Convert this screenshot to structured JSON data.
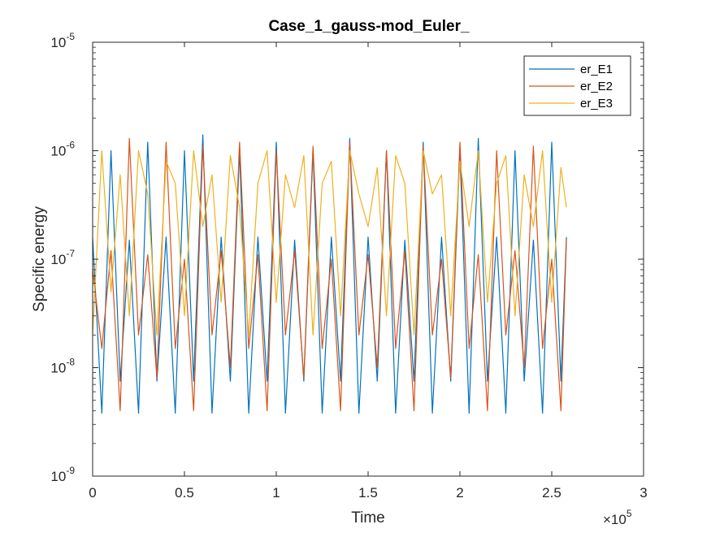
{
  "chart_data": {
    "type": "line",
    "title": "Case_1_gauss-mod_Euler_",
    "xlabel": "Time",
    "ylabel": "Specific energy",
    "x_exponent_label": "×10",
    "x_exponent_power": "5",
    "xlim": [
      0,
      300000
    ],
    "ylim": [
      1e-09,
      1e-05
    ],
    "yscale": "log",
    "x_ticks": [
      0,
      50000,
      100000,
      150000,
      200000,
      250000,
      300000
    ],
    "x_tick_labels": [
      "0",
      "0.5",
      "1",
      "1.5",
      "2",
      "2.5",
      "3"
    ],
    "y_ticks": [
      1e-09,
      1e-08,
      1e-07,
      1e-06,
      1e-05
    ],
    "y_tick_mantissa": [
      "10",
      "10",
      "10",
      "10",
      "10"
    ],
    "y_tick_powers": [
      "-9",
      "-8",
      "-7",
      "-6",
      "-5"
    ],
    "grid": false,
    "legend_position": "top-right",
    "series": [
      {
        "name": "er_E1",
        "color": "#0072BD",
        "x": [
          0,
          5000,
          10000,
          15000,
          20000,
          25000,
          30000,
          35000,
          40000,
          45000,
          50000,
          55000,
          60000,
          65000,
          70000,
          75000,
          80000,
          85000,
          90000,
          95000,
          100000,
          105000,
          110000,
          115000,
          120000,
          125000,
          130000,
          135000,
          140000,
          145000,
          150000,
          155000,
          160000,
          165000,
          170000,
          175000,
          180000,
          185000,
          190000,
          195000,
          200000,
          205000,
          210000,
          215000,
          220000,
          225000,
          230000,
          235000,
          240000,
          245000,
          250000,
          255000,
          258000
        ],
        "y": [
          1.6e-07,
          3.8e-09,
          1e-06,
          7.5e-09,
          1.5e-07,
          3.8e-09,
          1.2e-06,
          7.5e-09,
          1.6e-07,
          3.8e-09,
          1e-06,
          7.5e-09,
          1.4e-06,
          3.8e-09,
          1.6e-07,
          7.5e-09,
          1e-06,
          3.8e-09,
          1.6e-07,
          7.5e-09,
          1.2e-06,
          3.8e-09,
          1.5e-07,
          7.5e-09,
          1e-06,
          3.8e-09,
          1.6e-07,
          7.5e-09,
          1.3e-06,
          3.8e-09,
          1.6e-07,
          7.5e-09,
          1e-06,
          3.8e-09,
          1.5e-07,
          7.5e-09,
          1.2e-06,
          3.8e-09,
          1.6e-07,
          7.5e-09,
          1e-06,
          3.8e-09,
          1.3e-06,
          7.5e-09,
          1.6e-07,
          3.8e-09,
          1e-06,
          7.5e-09,
          1.5e-07,
          3.8e-09,
          1.2e-06,
          7.5e-09,
          1.6e-07
        ]
      },
      {
        "name": "er_E2",
        "color": "#D95319",
        "x": [
          0,
          5000,
          10000,
          15000,
          20000,
          25000,
          30000,
          35000,
          40000,
          45000,
          50000,
          55000,
          60000,
          65000,
          70000,
          75000,
          80000,
          85000,
          90000,
          95000,
          100000,
          105000,
          110000,
          115000,
          120000,
          125000,
          130000,
          135000,
          140000,
          145000,
          150000,
          155000,
          160000,
          165000,
          170000,
          175000,
          180000,
          185000,
          190000,
          195000,
          200000,
          205000,
          210000,
          215000,
          220000,
          225000,
          230000,
          235000,
          240000,
          245000,
          250000,
          255000,
          258000
        ],
        "y": [
          8e-08,
          1.5e-08,
          1.2e-07,
          4e-09,
          1.3e-06,
          2e-08,
          1.1e-07,
          8e-09,
          1.2e-06,
          1.5e-08,
          1e-07,
          4e-09,
          1.1e-06,
          2e-08,
          1.2e-07,
          1e-08,
          1.2e-06,
          1.5e-08,
          1.1e-07,
          4e-09,
          1e-06,
          2e-08,
          1.2e-07,
          8e-09,
          1.1e-06,
          1.5e-08,
          1e-07,
          4e-09,
          1.2e-06,
          2e-08,
          1.1e-07,
          1e-08,
          1e-06,
          1.5e-08,
          1.2e-07,
          4e-09,
          1.1e-06,
          2e-08,
          1e-07,
          8e-09,
          1.2e-06,
          1.5e-08,
          1.1e-07,
          4e-09,
          1e-06,
          2e-08,
          1.2e-07,
          1e-08,
          1.1e-06,
          1.5e-08,
          1e-07,
          4e-09,
          1.5e-07
        ]
      },
      {
        "name": "er_E3",
        "color": "#EDB120",
        "x": [
          0,
          5000,
          10000,
          15000,
          20000,
          25000,
          30000,
          35000,
          40000,
          45000,
          50000,
          55000,
          60000,
          65000,
          70000,
          75000,
          80000,
          85000,
          90000,
          95000,
          100000,
          105000,
          110000,
          115000,
          120000,
          125000,
          130000,
          135000,
          140000,
          145000,
          150000,
          155000,
          160000,
          165000,
          170000,
          175000,
          180000,
          185000,
          190000,
          195000,
          200000,
          205000,
          210000,
          215000,
          220000,
          225000,
          230000,
          235000,
          240000,
          245000,
          250000,
          255000,
          258000
        ],
        "y": [
          2e-08,
          1e-06,
          5e-08,
          6e-07,
          3e-08,
          1e-06,
          4e-07,
          2e-08,
          8e-07,
          5e-07,
          3e-08,
          1e-06,
          2e-07,
          6e-07,
          4e-08,
          9e-07,
          3e-07,
          2e-08,
          5e-07,
          1e-06,
          4e-08,
          6e-07,
          3e-07,
          9e-07,
          2e-08,
          5e-07,
          8e-07,
          3e-08,
          1e-06,
          4e-07,
          2e-07,
          7e-07,
          3e-08,
          9e-07,
          5e-07,
          2e-08,
          1e-06,
          4e-07,
          6e-07,
          3e-08,
          8e-07,
          2e-07,
          1e-06,
          4e-08,
          5e-07,
          9e-07,
          3e-08,
          6e-07,
          2e-07,
          1e-06,
          4e-08,
          7e-07,
          3e-07
        ]
      }
    ]
  }
}
